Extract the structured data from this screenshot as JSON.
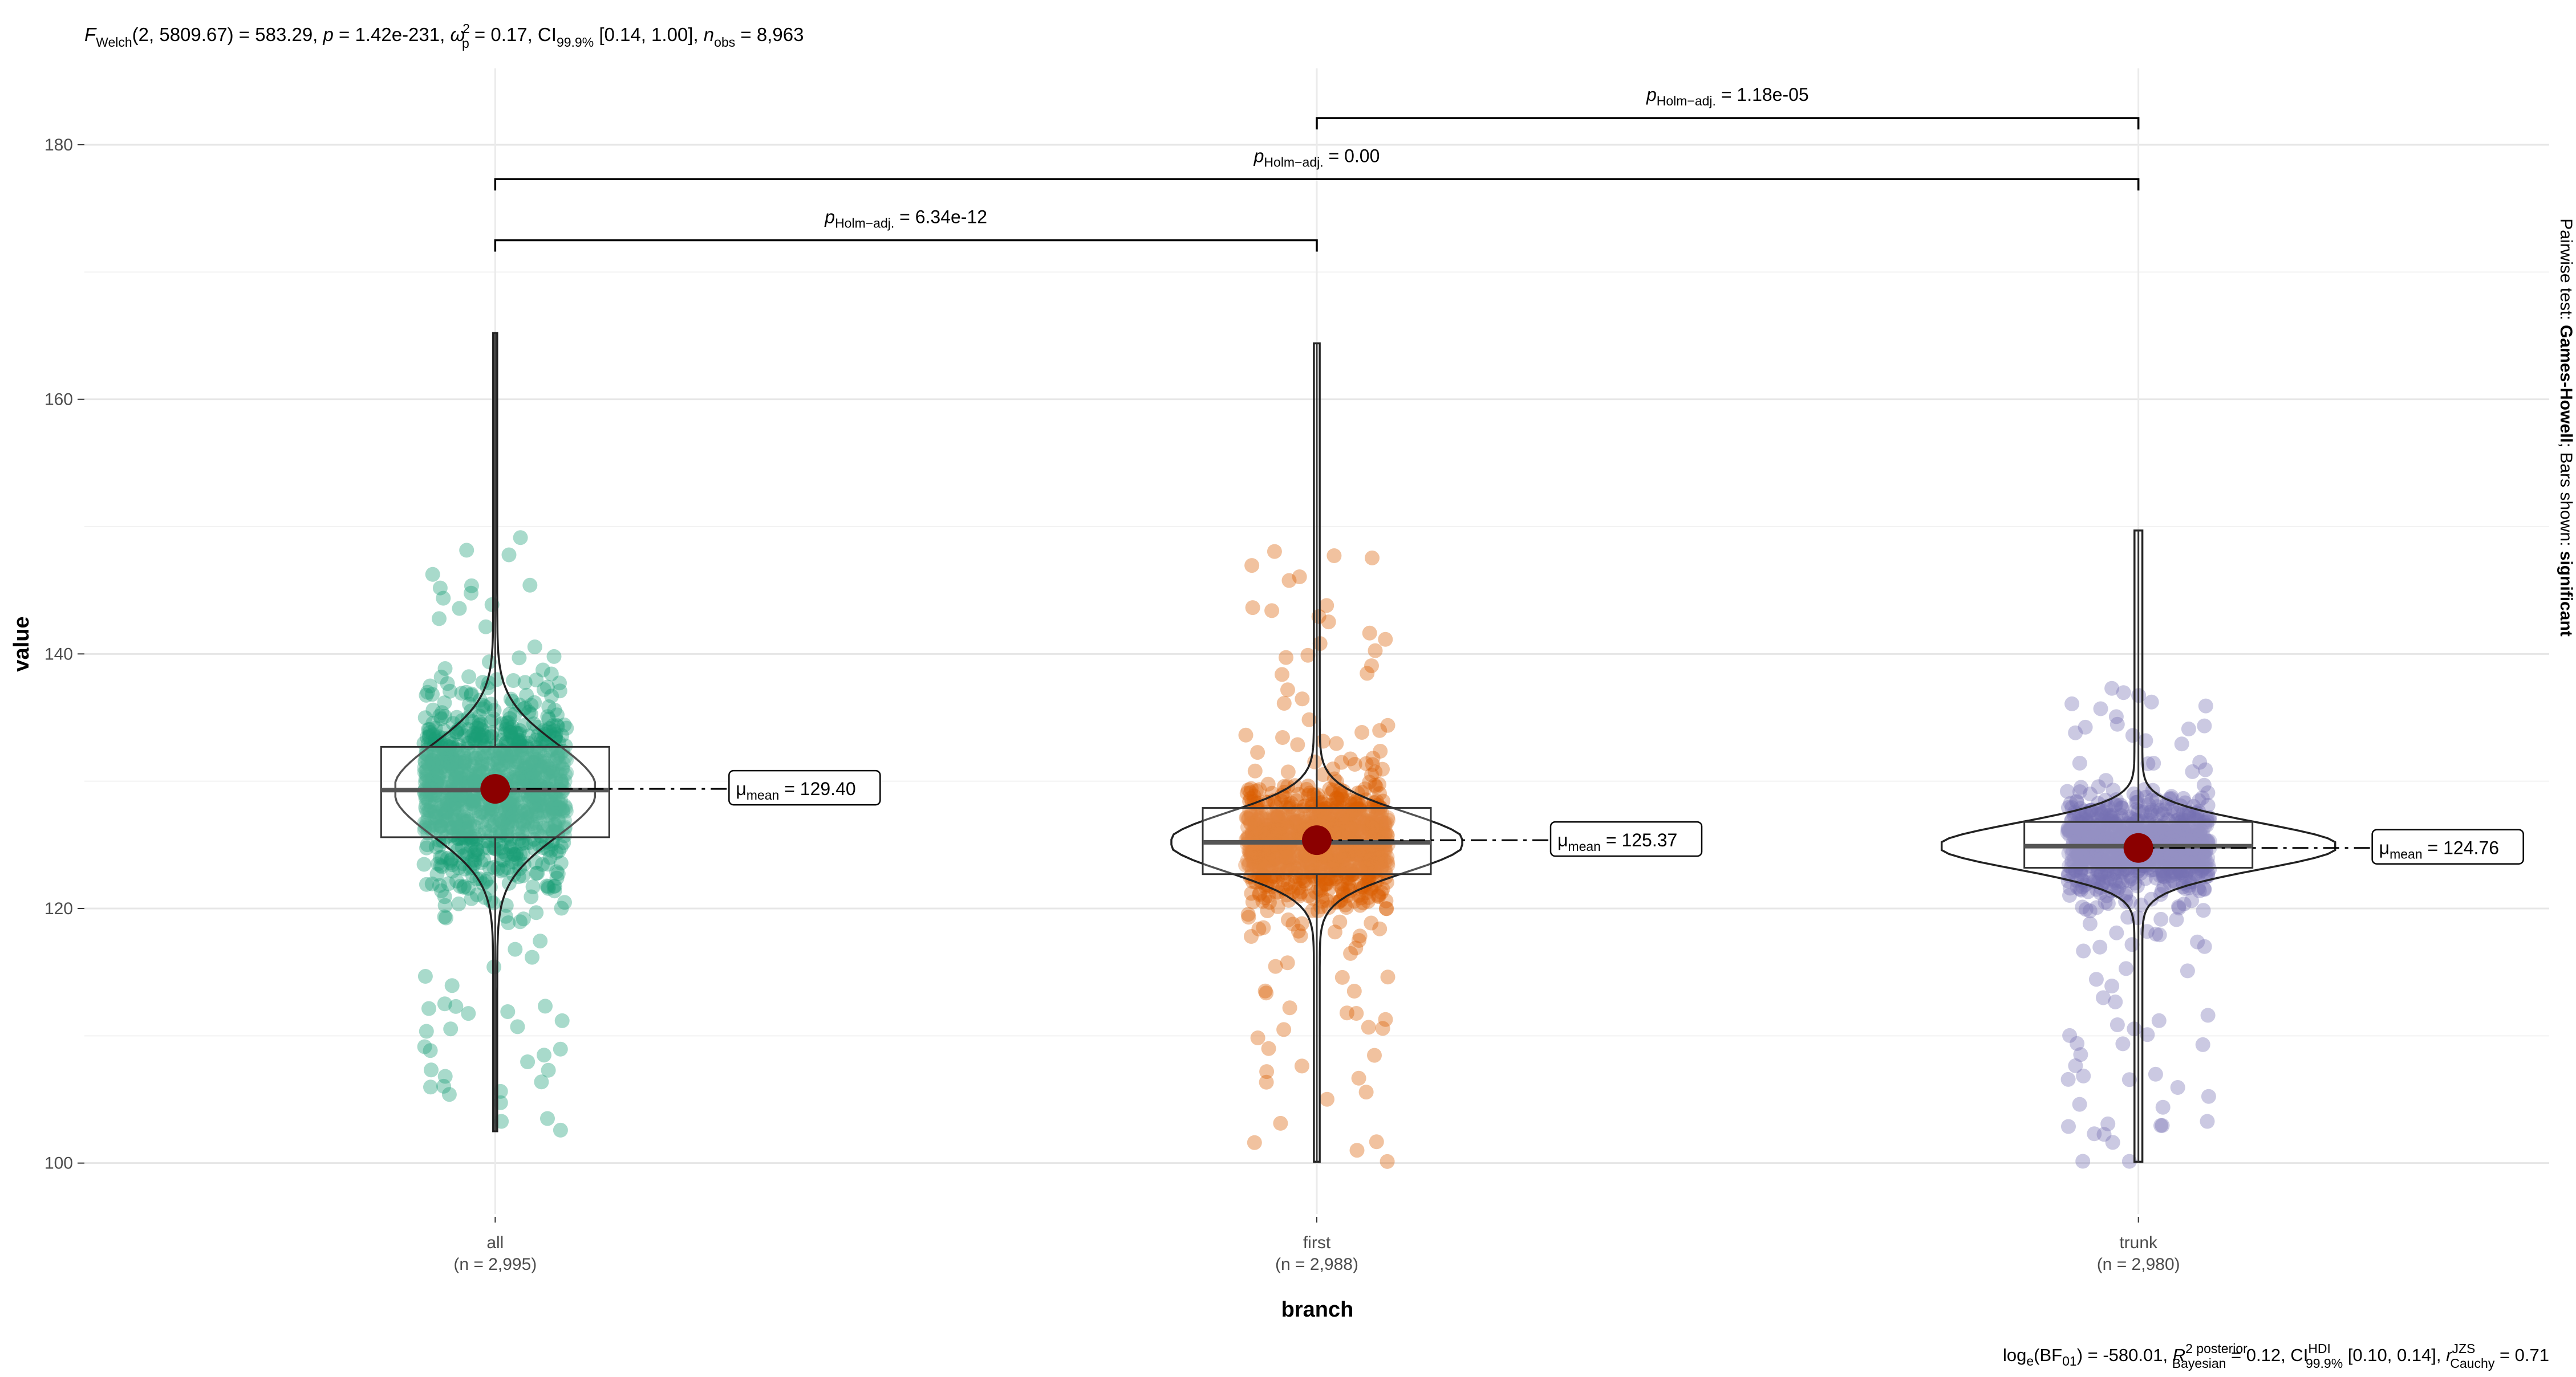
{
  "chart_data": {
    "type": "violin-box-scatter",
    "title_parts": {
      "F": "F",
      "welch": "Welch",
      "args": "(2, 5809.67) = 583.29, ",
      "p": "p",
      "p_val": " = 1.42e-231, ",
      "omega": "ω",
      "omega_sup": "2",
      "omega_sub": "p",
      "omega_val": " = 0.17, CI",
      "ci_sub": "99.9%",
      "ci_val": " [0.14, 1.00], ",
      "n": "n",
      "n_sub": "obs",
      "n_val": " = 8,963"
    },
    "xlabel": "branch",
    "ylabel": "value",
    "ylim": [
      96,
      186
    ],
    "yticks": [
      100,
      120,
      140,
      160,
      180
    ],
    "ytick_labels": [
      "100",
      "120",
      "140",
      "160",
      "180"
    ],
    "categories": [
      "all",
      "first",
      "trunk"
    ],
    "category_counts": [
      "(n = 2,995)",
      "(n = 2,988)",
      "(n = 2,980)"
    ],
    "colors": [
      "#1B9E77",
      "#D95F02",
      "#7570B3"
    ],
    "mean_color": "#8B0000",
    "groups": [
      {
        "name": "all",
        "mean": 129.4,
        "mean_label": "129.40",
        "q1": 125.6,
        "median": 129.3,
        "q3": 132.7,
        "min": 102.5,
        "max": 165.2
      },
      {
        "name": "first",
        "mean": 125.37,
        "mean_label": "125.37",
        "q1": 122.7,
        "median": 125.2,
        "q3": 127.9,
        "min": 100.1,
        "max": 164.4
      },
      {
        "name": "trunk",
        "mean": 124.76,
        "mean_label": "124.76",
        "q1": 123.2,
        "median": 124.9,
        "q3": 126.8,
        "min": 100.1,
        "max": 149.7
      }
    ],
    "mean_label_prefix": "μ",
    "mean_label_sub": "mean",
    "mean_label_eq": " = ",
    "pairwise": [
      {
        "from": "all",
        "to": "first",
        "label_p": "p",
        "label_sub": "Holm−adj.",
        "label_val": " = 6.34e-12",
        "y": 172.5
      },
      {
        "from": "all",
        "to": "trunk",
        "label_p": "p",
        "label_sub": "Holm−adj.",
        "label_val": " = 0.00",
        "y": 177.3
      },
      {
        "from": "first",
        "to": "trunk",
        "label_p": "p",
        "label_sub": "Holm−adj.",
        "label_val": " = 1.18e-05",
        "y": 182.1
      }
    ],
    "caption_parts": {
      "t1": "log",
      "t1_sub": "e",
      "t2": "(BF",
      "t2_sub": "01",
      "t3": ") = -580.01, ",
      "r2": "R",
      "r2_sup": "2 posterior",
      "r2_sub": "Bayesian",
      "r2_val": " = 0.12, CI",
      "ci_sup": "HDI",
      "ci_sub": "99.9%",
      "ci_val": " [0.10, 0.14], ",
      "r": "r",
      "r_sup": "JZS",
      "r_sub": "Cauchy",
      "r_val": " = 0.71"
    },
    "side_caption": {
      "pre": "Pairwise test: ",
      "bold1": "Games-Howell",
      "mid": "; Bars shown: ",
      "bold2": "significant"
    }
  }
}
